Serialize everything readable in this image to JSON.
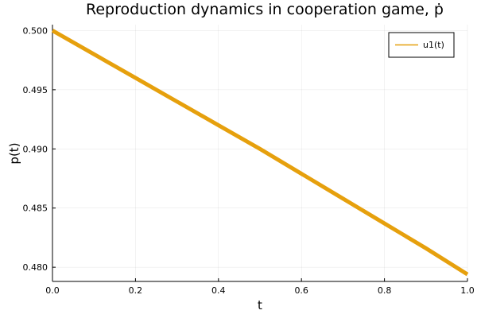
{
  "chart_data": {
    "type": "line",
    "title": "Reproduction dynamics in cooperation game, ṗ",
    "xlabel": "t",
    "ylabel": "p(t)",
    "xlim": [
      0.0,
      1.0
    ],
    "ylim": [
      0.4788,
      0.5005
    ],
    "xticks": [
      0.0,
      0.2,
      0.4,
      0.6,
      0.8,
      1.0
    ],
    "xtick_labels": [
      "0.0",
      "0.2",
      "0.4",
      "0.6",
      "0.8",
      "1.0"
    ],
    "yticks": [
      0.48,
      0.485,
      0.49,
      0.495,
      0.5
    ],
    "ytick_labels": [
      "0.480",
      "0.485",
      "0.490",
      "0.495",
      "0.500"
    ],
    "grid": true,
    "legend_position": "top-right",
    "series": [
      {
        "name": "u1(t)",
        "color": "#e6a00d",
        "x": [
          0.0,
          0.1,
          0.2,
          0.3,
          0.4,
          0.5,
          0.6,
          0.7,
          0.8,
          0.9,
          1.0
        ],
        "y": [
          0.5,
          0.498,
          0.496,
          0.494,
          0.492,
          0.49,
          0.4879,
          0.4858,
          0.4837,
          0.4816,
          0.4794
        ]
      }
    ]
  }
}
